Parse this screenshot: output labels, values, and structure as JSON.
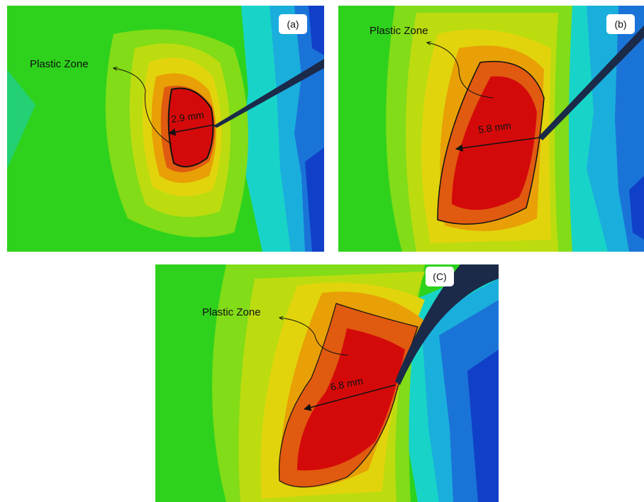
{
  "panels": [
    {
      "label": "(a)",
      "annotation": "Plastic Zone",
      "measurement": "2.9 mm"
    },
    {
      "label": "(b)",
      "annotation": "Plastic Zone",
      "measurement": "5.8 mm"
    },
    {
      "label": "(C)",
      "annotation": "Plastic Zone",
      "measurement": "6.8 mm"
    }
  ]
}
